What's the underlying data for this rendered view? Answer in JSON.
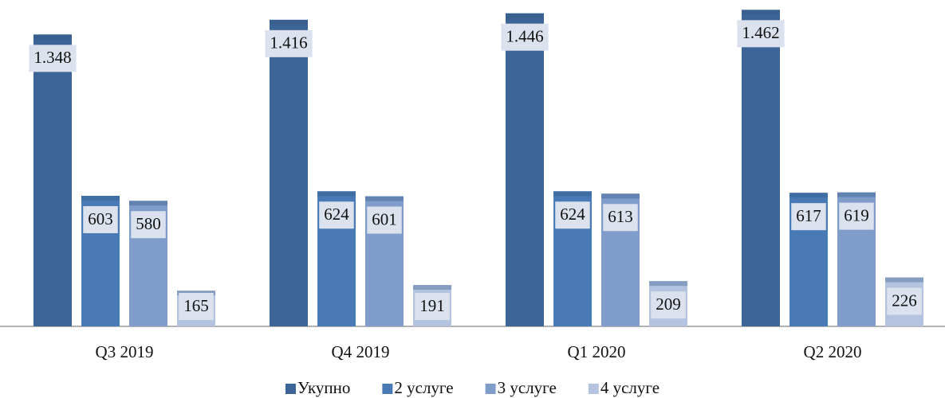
{
  "chart_data": {
    "type": "bar",
    "categories": [
      "Q3 2019",
      "Q4 2019",
      "Q1 2020",
      "Q2 2020"
    ],
    "series": [
      {
        "name": "Укупно",
        "color": "#3c6496",
        "values": [
          1348,
          1416,
          1446,
          1462
        ],
        "value_labels": [
          "1.348",
          "1.416",
          "1.446",
          "1.462"
        ]
      },
      {
        "name": "2 услуге",
        "color": "#4a7ab5",
        "values": [
          603,
          624,
          624,
          617
        ]
      },
      {
        "name": "3 услуге",
        "color": "#7f9ccb",
        "values": [
          580,
          601,
          613,
          619
        ]
      },
      {
        "name": "4 услуге",
        "color": "#b4c4e0",
        "values": [
          165,
          191,
          209,
          226
        ]
      }
    ],
    "ylim": [
      0,
      1500
    ],
    "legend": "bottom"
  }
}
